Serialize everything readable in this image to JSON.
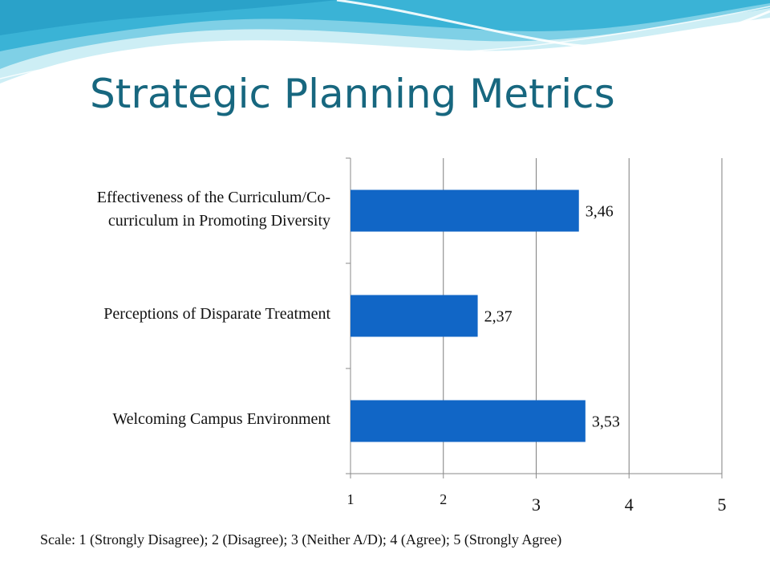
{
  "slide": {
    "title": "Strategic Planning Metrics",
    "scale_note": "Scale: 1 (Strongly Disagree); 2 (Disagree); 3 (Neither A/D); 4 (Agree); 5 (Strongly Agree)"
  },
  "colors": {
    "bar": "#1166c6",
    "title": "#17677f",
    "axis": "#8a8a8a",
    "grid": "#7f7f7f"
  },
  "chart_data": {
    "type": "bar",
    "orientation": "horizontal",
    "categories": [
      "Effectiveness of the Curriculum/Co-curriculum in Promoting Diversity",
      "Perceptions of Disparate Treatment",
      "Welcoming Campus Environment"
    ],
    "category_lines": [
      [
        "Effectiveness of the Curriculum/Co-",
        "curriculum in Promoting Diversity"
      ],
      [
        "Perceptions of Disparate Treatment"
      ],
      [
        "Welcoming Campus Environment"
      ]
    ],
    "values": [
      3.46,
      2.37,
      3.53
    ],
    "data_labels": [
      "3,46",
      "2,37",
      "3,53"
    ],
    "xlim": [
      1,
      5
    ],
    "x_ticks": [
      "1",
      "2",
      "3",
      "4",
      "5"
    ],
    "grid": true,
    "legend": "none"
  }
}
